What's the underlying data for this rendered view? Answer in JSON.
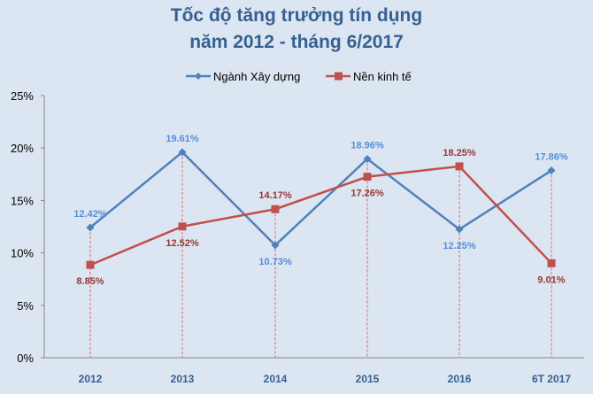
{
  "chart_data": {
    "type": "line",
    "title": [
      "Tốc độ tăng trưởng tín dụng",
      "năm 2012 - tháng 6/2017"
    ],
    "categories": [
      "2012",
      "2013",
      "2014",
      "2015",
      "2016",
      "6T 2017"
    ],
    "series": [
      {
        "name": "Ngành Xây dựng",
        "values": [
          12.42,
          19.61,
          10.73,
          18.96,
          12.25,
          17.86
        ],
        "labels": [
          "12.42%",
          "19.61%",
          "10.73%",
          "18.96%",
          "12.25%",
          "17.86%"
        ],
        "color": "#4f81bd",
        "label_color": "#558ed5",
        "marker": "diamond"
      },
      {
        "name": "Nền kinh tế",
        "values": [
          8.85,
          12.52,
          14.17,
          17.26,
          18.25,
          9.01
        ],
        "labels": [
          "8.85%",
          "12.52%",
          "14.17%",
          "17.26%",
          "18.25%",
          "9.01%"
        ],
        "color": "#c0504d",
        "label_color": "#953735",
        "marker": "square"
      }
    ],
    "ylim": [
      0,
      25
    ],
    "yticks": [
      "0%",
      "5%",
      "10%",
      "15%",
      "20%",
      "25%"
    ],
    "legend": "top",
    "grid": false,
    "drop_lines": true
  }
}
